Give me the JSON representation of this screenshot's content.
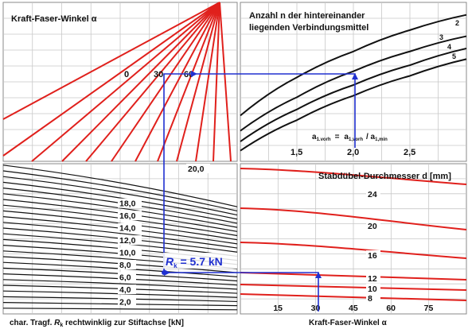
{
  "chart_data": [
    {
      "type": "line",
      "title": "Kraft-Faser-Winkel α",
      "angle_labels": [
        "0",
        "30",
        "60"
      ],
      "note": "fan of red lines radiating from the top; one line per force-fibre angle"
    },
    {
      "type": "line",
      "title_line1": "Anzahl n der hintereinander",
      "title_line2": "liegenden Verbindungsmittel",
      "axis_label_parts": {
        "a": "a",
        "sub_vorh": "1.vorh",
        "eq": "=",
        "a1": "a",
        "sub_1": "1,vorh",
        "slash": "/ a",
        "sub_min": "1,min"
      },
      "x_ticks": [
        "1,5",
        "2,0",
        "2,5"
      ],
      "xlim": [
        1.0,
        3.0
      ],
      "series": [
        {
          "name": "2",
          "values": [
            0.3,
            0.55,
            0.72,
            0.86,
            0.96
          ]
        },
        {
          "name": "3",
          "values": [
            0.2,
            0.42,
            0.59,
            0.72,
            0.82
          ]
        },
        {
          "name": "4",
          "values": [
            0.13,
            0.34,
            0.5,
            0.63,
            0.74
          ]
        },
        {
          "name": "5",
          "values": [
            0.07,
            0.27,
            0.43,
            0.56,
            0.67
          ]
        }
      ],
      "x": [
        1.0,
        1.5,
        2.0,
        2.5,
        3.0
      ]
    },
    {
      "type": "line",
      "xlabel": "char. Tragf. R_k rechtwinklig zur Stiftachse [kN]",
      "xlabel_parts": {
        "pre": "char. Tragf. ",
        "sym": "R",
        "sub": "k",
        "post": " rechtwinklig zur Stiftachse [kN]"
      },
      "y_ticks": [
        "2,0",
        "4,0",
        "6,0",
        "8,0",
        "10,0",
        "12,0",
        "14,0",
        "16,0",
        "18,0",
        "20,0"
      ],
      "ylim": [
        0,
        21
      ],
      "annotation": {
        "sym": "R",
        "sub": "k",
        "text": " = 5.7 kN",
        "value": 5.7
      }
    },
    {
      "type": "line",
      "title": "Stabdübel-Durchmesser d [mm]",
      "xlabel": "Kraft-Faser-Winkel α",
      "x_ticks": [
        "15",
        "30",
        "45",
        "60",
        "75"
      ],
      "xlim": [
        0,
        90
      ],
      "series": [
        {
          "name": "24"
        },
        {
          "name": "20"
        },
        {
          "name": "16"
        },
        {
          "name": "12"
        },
        {
          "name": "10"
        },
        {
          "name": "8"
        }
      ]
    }
  ],
  "colors": {
    "curve_red": "#e0201c",
    "curve_black": "#111111",
    "guide_blue": "#2030d0",
    "grid": "#c8c8c8"
  }
}
